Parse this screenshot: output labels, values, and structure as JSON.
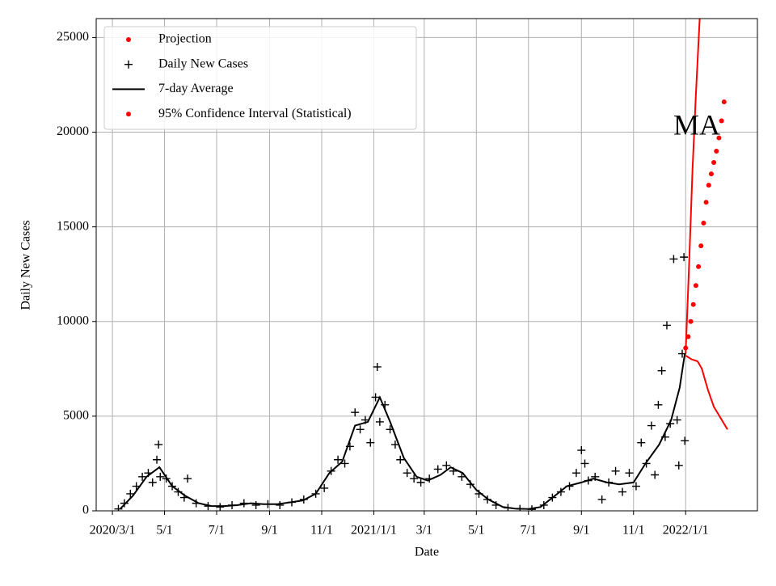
{
  "chart_data": {
    "type": "line",
    "xlabel": "Date",
    "ylabel": "Daily New Cases",
    "annotation": "MA",
    "xlim": [
      "2020-02-11",
      "2022-03-26"
    ],
    "ylim": [
      0,
      26000
    ],
    "xticks": [
      {
        "value": "2020-03-01",
        "label": "2020/3/1"
      },
      {
        "value": "2020-05-01",
        "label": "5/1"
      },
      {
        "value": "2020-07-01",
        "label": "7/1"
      },
      {
        "value": "2020-09-01",
        "label": "9/1"
      },
      {
        "value": "2020-11-01",
        "label": "11/1"
      },
      {
        "value": "2021-01-01",
        "label": "2021/1/1"
      },
      {
        "value": "2021-03-01",
        "label": "3/1"
      },
      {
        "value": "2021-05-01",
        "label": "5/1"
      },
      {
        "value": "2021-07-01",
        "label": "7/1"
      },
      {
        "value": "2021-09-01",
        "label": "9/1"
      },
      {
        "value": "2021-11-01",
        "label": "11/1"
      },
      {
        "value": "2022-01-01",
        "label": "2022/1/1"
      }
    ],
    "yticks": [
      0,
      5000,
      10000,
      15000,
      20000,
      25000
    ],
    "grid": true,
    "legend": "upper left",
    "series": [
      {
        "name": "Projection",
        "color": "#ff0000",
        "style": "dots",
        "x": [
          "2022-01-01",
          "2022-01-04",
          "2022-01-07",
          "2022-01-10",
          "2022-01-13",
          "2022-01-16",
          "2022-01-19",
          "2022-01-22",
          "2022-01-25",
          "2022-01-28",
          "2022-01-31",
          "2022-02-03",
          "2022-02-06",
          "2022-02-09",
          "2022-02-12",
          "2022-02-15"
        ],
        "values": [
          8600,
          9200,
          10000,
          10900,
          11900,
          12900,
          14000,
          15200,
          16300,
          17200,
          17800,
          18400,
          19000,
          19700,
          20600,
          21600
        ]
      },
      {
        "name": "Daily New Cases",
        "color": "#000000",
        "style": "plus",
        "x": [
          "2020-03-08",
          "2020-03-15",
          "2020-03-22",
          "2020-03-29",
          "2020-04-05",
          "2020-04-12",
          "2020-04-17",
          "2020-04-22",
          "2020-04-24",
          "2020-04-26",
          "2020-05-03",
          "2020-05-10",
          "2020-05-17",
          "2020-05-24",
          "2020-05-28",
          "2020-06-07",
          "2020-06-21",
          "2020-07-05",
          "2020-07-19",
          "2020-08-02",
          "2020-08-16",
          "2020-08-30",
          "2020-09-13",
          "2020-09-27",
          "2020-10-11",
          "2020-10-25",
          "2020-11-04",
          "2020-11-12",
          "2020-11-20",
          "2020-11-28",
          "2020-12-04",
          "2020-12-10",
          "2020-12-16",
          "2020-12-22",
          "2020-12-28",
          "2021-01-03",
          "2021-01-05",
          "2021-01-08",
          "2021-01-14",
          "2021-01-20",
          "2021-01-26",
          "2021-02-01",
          "2021-02-09",
          "2021-02-17",
          "2021-02-25",
          "2021-03-07",
          "2021-03-17",
          "2021-03-27",
          "2021-04-04",
          "2021-04-14",
          "2021-04-24",
          "2021-05-04",
          "2021-05-14",
          "2021-05-24",
          "2021-06-07",
          "2021-06-21",
          "2021-07-05",
          "2021-07-19",
          "2021-07-29",
          "2021-08-08",
          "2021-08-18",
          "2021-08-26",
          "2021-09-01",
          "2021-09-05",
          "2021-09-09",
          "2021-09-17",
          "2021-09-25",
          "2021-10-03",
          "2021-10-11",
          "2021-10-19",
          "2021-10-27",
          "2021-11-04",
          "2021-11-10",
          "2021-11-16",
          "2021-11-22",
          "2021-11-26",
          "2021-11-30",
          "2021-12-04",
          "2021-12-08",
          "2021-12-10",
          "2021-12-14",
          "2021-12-18",
          "2021-12-22",
          "2021-12-24",
          "2021-12-28",
          "2021-12-30",
          "2021-12-31"
        ],
        "values": [
          100,
          400,
          900,
          1300,
          1800,
          2000,
          1500,
          2700,
          3500,
          1800,
          1700,
          1300,
          1000,
          700,
          1700,
          400,
          250,
          200,
          300,
          400,
          300,
          350,
          300,
          450,
          600,
          900,
          1200,
          2100,
          2700,
          2500,
          3400,
          5200,
          4300,
          4800,
          3600,
          6000,
          7600,
          4700,
          5600,
          4300,
          3500,
          2700,
          2000,
          1700,
          1500,
          1700,
          2200,
          2400,
          2100,
          1800,
          1400,
          900,
          600,
          300,
          150,
          100,
          80,
          300,
          700,
          1000,
          1300,
          2000,
          3200,
          2500,
          1600,
          1800,
          600,
          1500,
          2100,
          1000,
          2000,
          1300,
          3600,
          2500,
          4500,
          1900,
          5600,
          7400,
          3900,
          9800,
          4600,
          13300,
          4800,
          2400,
          8300,
          13400,
          3700
        ]
      },
      {
        "name": "7-day Average",
        "color": "#000000",
        "style": "line",
        "x": [
          "2020-03-10",
          "2020-03-25",
          "2020-04-10",
          "2020-04-25",
          "2020-05-10",
          "2020-05-25",
          "2020-06-10",
          "2020-06-25",
          "2020-07-10",
          "2020-07-25",
          "2020-08-10",
          "2020-08-25",
          "2020-09-10",
          "2020-09-25",
          "2020-10-10",
          "2020-10-25",
          "2020-11-10",
          "2020-11-25",
          "2020-12-10",
          "2020-12-25",
          "2021-01-08",
          "2021-01-20",
          "2021-02-05",
          "2021-02-20",
          "2021-03-05",
          "2021-03-20",
          "2021-04-01",
          "2021-04-15",
          "2021-05-01",
          "2021-05-15",
          "2021-06-01",
          "2021-06-15",
          "2021-07-01",
          "2021-07-15",
          "2021-08-01",
          "2021-08-15",
          "2021-09-01",
          "2021-09-15",
          "2021-10-01",
          "2021-10-15",
          "2021-11-01",
          "2021-11-15",
          "2021-12-01",
          "2021-12-15",
          "2021-12-25",
          "2021-12-31"
        ],
        "values": [
          100,
          800,
          1800,
          2300,
          1300,
          800,
          400,
          250,
          250,
          300,
          400,
          350,
          350,
          450,
          550,
          900,
          2000,
          2600,
          4500,
          4700,
          6000,
          4700,
          2800,
          1800,
          1600,
          1900,
          2300,
          2000,
          1100,
          600,
          200,
          120,
          100,
          200,
          800,
          1300,
          1500,
          1700,
          1500,
          1400,
          1500,
          2500,
          3500,
          4800,
          6500,
          8300
        ]
      },
      {
        "name": "95% Confidence Interval (Statistical)",
        "color": "#ff0000",
        "style": "band",
        "x": [
          "2022-01-01",
          "2022-01-05",
          "2022-01-09",
          "2022-01-13",
          "2022-01-18"
        ],
        "values": [
          8300,
          13000,
          18000,
          22000,
          26500
        ],
        "x_lower": [
          "2022-01-01",
          "2022-01-08",
          "2022-01-15",
          "2022-01-20",
          "2022-01-27",
          "2022-02-03",
          "2022-02-19"
        ],
        "values_lower": [
          8200,
          8000,
          7900,
          7500,
          6400,
          5500,
          4300
        ]
      }
    ]
  }
}
